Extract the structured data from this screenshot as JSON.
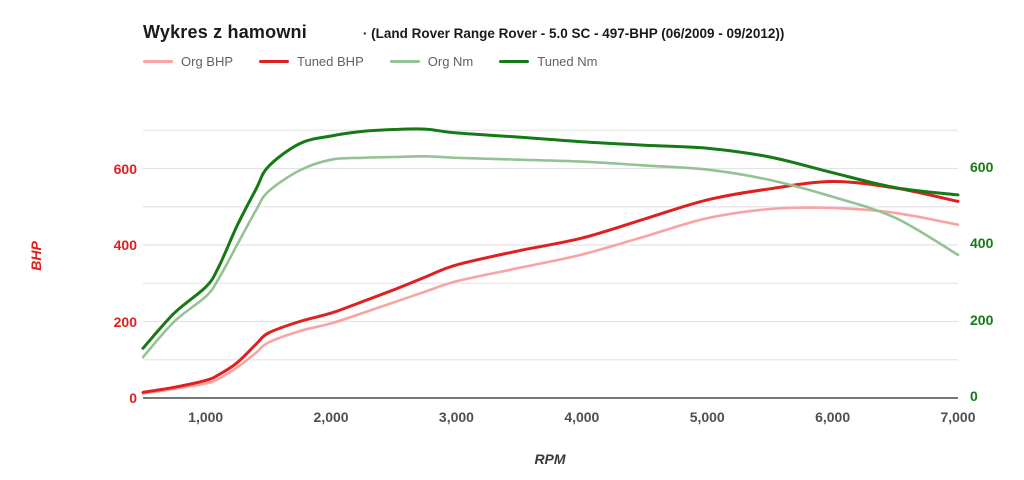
{
  "header": {
    "title": "Wykres z hamowni",
    "subtitle": "· (Land Rover Range Rover - 5.0 SC - 497-BHP (06/2009 - 09/2012))"
  },
  "axes": {
    "y_left_title": "BHP",
    "x_title": "RPM",
    "y_left_color": "#e01f1f",
    "y_right_color": "#157a15",
    "x_tick_color": "#4f4f4f"
  },
  "colors": {
    "grid": "#e4e4e4",
    "baseline": "#787878",
    "org_bhp": "#f7a4a2",
    "tuned_bhp": "#e01f1f",
    "org_nm": "#95c295",
    "tuned_nm": "#157a15"
  },
  "chart_data": {
    "type": "line",
    "title": "Wykres z hamowni (Land Rover Range Rover - 5.0 SC - 497-BHP)",
    "xlabel": "RPM",
    "ylabel": "BHP",
    "legend_position": "top",
    "grid": "horizontal only, every 100 units",
    "xlim": [
      500,
      7000
    ],
    "ylim": [
      0,
      700
    ],
    "grid_step": 100,
    "y_ticks": [
      0,
      200,
      400,
      600
    ],
    "y_tick_labels": [
      "0",
      "200",
      "400",
      "600"
    ],
    "x_ticks": [
      1000,
      2000,
      3000,
      4000,
      5000,
      6000,
      7000
    ],
    "x_tick_labels": [
      "1,000",
      "2,000",
      "3,000",
      "4,000",
      "5,000",
      "6,000",
      "7,000"
    ],
    "x": [
      500,
      750,
      1000,
      1100,
      1250,
      1400,
      1500,
      1750,
      2000,
      2250,
      2500,
      2750,
      3000,
      3500,
      4000,
      4500,
      5000,
      5500,
      6000,
      6500,
      7000
    ],
    "series": [
      {
        "name": "Org BHP",
        "slug": "org-bhp",
        "color": "#f7a4a2",
        "width": 2.6,
        "values": [
          12,
          24,
          38,
          50,
          80,
          118,
          145,
          175,
          195,
          222,
          250,
          278,
          305,
          340,
          375,
          422,
          470,
          494,
          497,
          484,
          453
        ]
      },
      {
        "name": "Tuned BHP",
        "slug": "tuned-bhp",
        "color": "#e01f1f",
        "width": 3,
        "values": [
          15,
          28,
          46,
          60,
          92,
          140,
          170,
          200,
          222,
          252,
          283,
          316,
          348,
          385,
          418,
          468,
          518,
          547,
          566,
          549,
          514
        ]
      },
      {
        "name": "Org Nm",
        "slug": "org-nm",
        "color": "#95c295",
        "width": 2.6,
        "values": [
          107,
          200,
          265,
          310,
          400,
          490,
          540,
          595,
          623,
          628,
          630,
          632,
          628,
          623,
          618,
          608,
          597,
          570,
          526,
          471,
          374
        ]
      },
      {
        "name": "Tuned Nm",
        "slug": "tuned-nm",
        "color": "#157a15",
        "width": 3,
        "values": [
          130,
          222,
          290,
          340,
          450,
          545,
          605,
          665,
          685,
          697,
          702,
          703,
          693,
          682,
          670,
          661,
          653,
          630,
          589,
          550,
          531
        ]
      }
    ]
  }
}
